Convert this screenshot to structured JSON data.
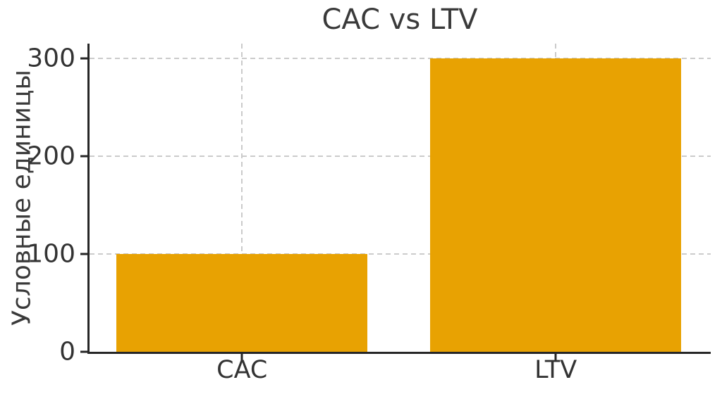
{
  "chart_data": {
    "type": "bar",
    "title": "CAC vs LTV",
    "xlabel": "",
    "ylabel": "Условные единицы",
    "categories": [
      "CAC",
      "LTV"
    ],
    "values": [
      100,
      300
    ],
    "yticks": [
      0,
      100,
      200,
      300
    ],
    "ylim": [
      0,
      315
    ],
    "bar_width_data_units": 0.8,
    "bar_color": "#E8A202",
    "grid": true,
    "grid_line_style": "dashed",
    "grid_color": "#CBCBCB",
    "axis_color": "#262626",
    "text_color": "#333333",
    "title_color": "#3A3A3A",
    "legend_position": "none"
  }
}
